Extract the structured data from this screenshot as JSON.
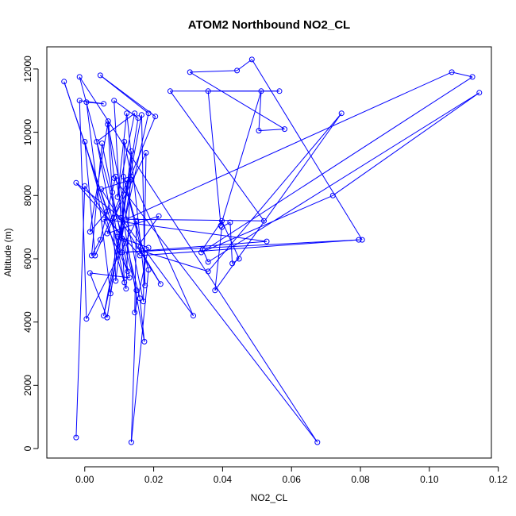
{
  "chart_data": {
    "type": "line",
    "title": "ATOM2 Northbound NO2_CL",
    "xlabel": "NO2_CL",
    "ylabel": "Altitude (m)",
    "xlim": [
      -0.011,
      0.118
    ],
    "ylim": [
      -300,
      12700
    ],
    "x_ticks": [
      0.0,
      0.02,
      0.04,
      0.06,
      0.08,
      0.1,
      0.12
    ],
    "x_tick_labels": [
      "0.00",
      "0.02",
      "0.04",
      "0.06",
      "0.08",
      "0.10",
      "0.12"
    ],
    "y_ticks": [
      0,
      2000,
      4000,
      6000,
      8000,
      10000,
      12000
    ],
    "y_tick_labels": [
      "0",
      "2000",
      "4000",
      "6000",
      "8000",
      "10000",
      "12000"
    ],
    "grid": false,
    "marker": "open-circle",
    "colors": {
      "series": "#0000ff",
      "axes": "#000000",
      "background": "#ffffff"
    },
    "series": [
      {
        "points": [
          [
            -0.0025,
            350
          ],
          [
            0.0,
            8300
          ],
          [
            0.012,
            6500
          ],
          [
            0.016,
            4750
          ],
          [
            0.0173,
            3380
          ],
          [
            0.009,
            8600
          ],
          [
            0.0045,
            6600
          ],
          [
            0.002,
            6100
          ],
          [
            0.005,
            9650
          ],
          [
            0.013,
            5400
          ],
          [
            0.0015,
            5550
          ],
          [
            0.0065,
            4140
          ],
          [
            0.0125,
            8500
          ],
          [
            0.003,
            6100
          ],
          [
            0.0,
            9700
          ],
          [
            0.012,
            5050
          ],
          [
            0.0135,
            9400
          ],
          [
            0.009,
            5300
          ],
          [
            0.008,
            8100
          ],
          [
            0.0067,
            10250
          ],
          [
            0.017,
            4650
          ],
          [
            0.0178,
            9350
          ],
          [
            0.0085,
            7300
          ],
          [
            0.0095,
            6700
          ],
          [
            0.0185,
            6350
          ],
          [
            0.0145,
            4300
          ],
          [
            0.015,
            7200
          ],
          [
            0.0005,
            4100
          ],
          [
            -0.0015,
            11000
          ],
          [
            0.0055,
            10900
          ],
          [
            0.0005,
            10950
          ],
          [
            0.0075,
            4900
          ],
          [
            0.0155,
            10450
          ],
          [
            0.0085,
            11000
          ],
          [
            0.0115,
            5250
          ],
          [
            0.0035,
            9700
          ],
          [
            0.0145,
            10600
          ],
          [
            0.0095,
            7950
          ],
          [
            0.0122,
            10600
          ],
          [
            0.0175,
            5150
          ],
          [
            0.0165,
            10550
          ],
          [
            0.0055,
            4200
          ],
          [
            0.0185,
            10600
          ],
          [
            0.0045,
            11800
          ],
          [
            0.0205,
            10500
          ],
          [
            0.0065,
            6800
          ],
          [
            0.0215,
            7350
          ],
          [
            0.0155,
            6400
          ],
          [
            0.022,
            5200
          ],
          [
            0.0048,
            8200
          ],
          [
            0.0135,
            8500
          ],
          [
            0.0108,
            6650
          ],
          [
            0.0115,
            9700
          ],
          [
            0.0135,
            8600
          ],
          [
            0.0315,
            4200
          ],
          [
            0.0105,
            7300
          ],
          [
            -0.0025,
            8400
          ],
          [
            0.016,
            6100
          ],
          [
            0.0795,
            6600
          ],
          [
            0.0108,
            6200
          ],
          [
            0.0528,
            6550
          ],
          [
            0.0055,
            7250
          ],
          [
            0.0125,
            5600
          ],
          [
            -0.006,
            11600
          ],
          [
            0.0065,
            7500
          ],
          [
            0.0015,
            6850
          ],
          [
            0.0068,
            10350
          ],
          [
            0.0085,
            8550
          ],
          [
            0.0675,
            200
          ],
          [
            -0.0015,
            11750
          ],
          [
            0.015,
            5000
          ],
          [
            0.0135,
            200
          ],
          [
            0.0185,
            5650
          ],
          [
            0.0112,
            8600
          ],
          [
            0.0165,
            6250
          ],
          [
            0.0358,
            5600
          ],
          [
            0.0745,
            10600
          ],
          [
            0.0378,
            5000
          ],
          [
            0.0398,
            7000
          ],
          [
            0.0422,
            7150
          ],
          [
            0.0428,
            5850
          ],
          [
            0.0448,
            6000
          ],
          [
            0.0398,
            7200
          ],
          [
            0.0342,
            6300
          ],
          [
            0.0358,
            5900
          ],
          [
            0.1145,
            11250
          ],
          [
            0.072,
            8000
          ],
          [
            0.0338,
            6200
          ],
          [
            0.1125,
            11750
          ],
          [
            0.1065,
            11900
          ],
          [
            0.012,
            7250
          ],
          [
            0.052,
            7200
          ],
          [
            0.0248,
            11300
          ],
          [
            0.0565,
            11300
          ],
          [
            0.0358,
            11300
          ],
          [
            0.0395,
            7050
          ],
          [
            0.0512,
            11300
          ],
          [
            0.0505,
            10050
          ],
          [
            0.058,
            10100
          ],
          [
            0.0305,
            11900
          ],
          [
            0.0442,
            11950
          ],
          [
            0.0485,
            12300
          ],
          [
            0.0805,
            6600
          ]
        ]
      }
    ]
  }
}
